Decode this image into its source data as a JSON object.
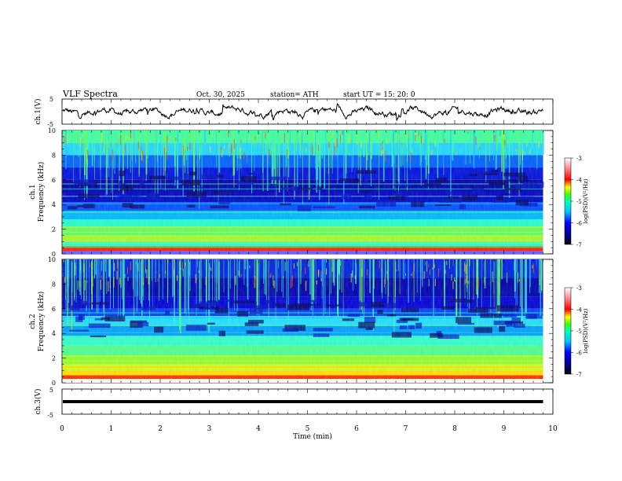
{
  "header": {
    "title": "VLF  Spectra",
    "date": "Oct. 30, 2025",
    "station": "station= ATH",
    "start": "start  UT  =    15: 20: 0"
  },
  "chart_data": [
    {
      "type": "line",
      "name": "ch1-waveform",
      "ylabel": "ch.1(V)",
      "ylim": [
        -5,
        5
      ],
      "yticks": [
        "5",
        "-5"
      ],
      "xlim": [
        0,
        10
      ],
      "data_end_min": 9.8,
      "color": "#000000"
    },
    {
      "type": "heatmap",
      "name": "ch1-spectrogram",
      "ylabel_top": "ch.1",
      "ylabel": "Frequency  (kHz)",
      "ylim": [
        0,
        10
      ],
      "yticks": [
        "0",
        "2",
        "4",
        "6",
        "8",
        "10"
      ],
      "xlim": [
        0,
        10
      ],
      "colorbar": {
        "label": "log(PSD)(V²/Hz)",
        "range": [
          -7,
          -3
        ],
        "ticks": [
          "-3",
          "-4",
          "-5",
          "-6",
          "-7"
        ]
      }
    },
    {
      "type": "heatmap",
      "name": "ch2-spectrogram",
      "ylabel_top": "ch.2",
      "ylabel": "Frequency  (kHz)",
      "ylim": [
        0,
        10
      ],
      "yticks": [
        "0",
        "2",
        "4",
        "6",
        "8",
        "10"
      ],
      "xlim": [
        0,
        10
      ],
      "colorbar": {
        "label": "log(PSD)(V²/Hz)",
        "range": [
          -7,
          -3
        ],
        "ticks": [
          "-3",
          "-4",
          "-5",
          "-6",
          "-7"
        ]
      }
    },
    {
      "type": "line",
      "name": "ch3-waveform",
      "ylabel": "ch.3(V)",
      "ylim": [
        -5,
        5
      ],
      "yticks": [
        "5",
        "-5"
      ],
      "xlim": [
        0,
        10
      ],
      "level": 0,
      "color": "#000000"
    }
  ],
  "xaxis": {
    "label": "Time  (min)",
    "ticks": [
      "0",
      "1",
      "2",
      "3",
      "4",
      "5",
      "6",
      "7",
      "8",
      "9",
      "10"
    ]
  }
}
